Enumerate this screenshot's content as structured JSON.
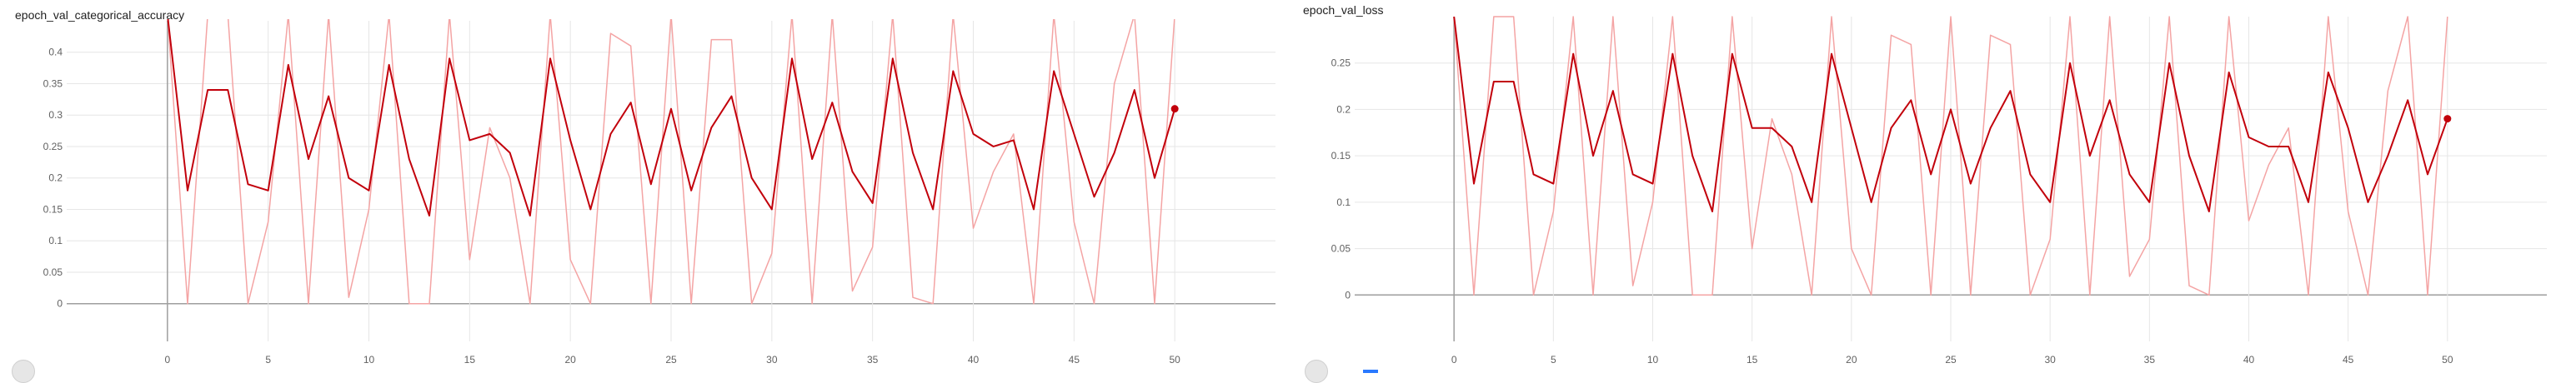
{
  "charts": [
    {
      "title": "epoch_val_categorical_accuracy"
    },
    {
      "title": "epoch_val_loss"
    }
  ],
  "chart_data": [
    {
      "type": "line",
      "title": "epoch_val_categorical_accuracy",
      "xlabel": "",
      "ylabel": "",
      "xlim": [
        -5,
        55
      ],
      "ylim": [
        -0.06,
        0.45
      ],
      "x_ticks": [
        0,
        5,
        10,
        15,
        20,
        25,
        30,
        35,
        40,
        45,
        50
      ],
      "y_ticks": [
        0,
        0.05,
        0.1,
        0.15,
        0.2,
        0.25,
        0.3,
        0.35,
        0.4
      ],
      "grid": true,
      "colors": {
        "smoothed": "#c2000b",
        "raw": "#f4a4a4"
      },
      "series": [
        {
          "x": [
            0,
            1,
            2,
            3,
            4,
            5,
            6,
            7,
            8,
            9,
            10,
            11,
            12,
            13,
            14,
            15,
            16,
            17,
            18,
            19,
            20,
            21,
            22,
            23,
            24,
            25,
            26,
            27,
            28,
            29,
            30,
            31,
            32,
            33,
            34,
            35,
            36,
            37,
            38,
            39,
            40,
            41,
            42,
            43,
            44,
            45,
            46,
            47,
            48,
            49,
            50
          ],
          "values": [
            0.46,
            0.18,
            0.34,
            0.34,
            0.19,
            0.18,
            0.38,
            0.23,
            0.33,
            0.2,
            0.18,
            0.38,
            0.23,
            0.14,
            0.39,
            0.26,
            0.27,
            0.24,
            0.14,
            0.39,
            0.26,
            0.15,
            0.27,
            0.32,
            0.19,
            0.31,
            0.18,
            0.28,
            0.33,
            0.2,
            0.15,
            0.39,
            0.23,
            0.32,
            0.21,
            0.16,
            0.39,
            0.24,
            0.15,
            0.37,
            0.27,
            0.25,
            0.26,
            0.15,
            0.37,
            0.27,
            0.17,
            0.24,
            0.34,
            0.2,
            0.31
          ]
        },
        {
          "x": [
            0,
            1,
            2,
            3,
            4,
            5,
            6,
            7,
            8,
            9,
            10,
            11,
            12,
            13,
            14,
            15,
            16,
            17,
            18,
            19,
            20,
            21,
            22,
            23,
            24,
            25,
            26,
            27,
            28,
            29,
            30,
            31,
            32,
            33,
            34,
            35,
            36,
            37,
            38,
            39,
            40,
            41,
            42,
            43,
            44,
            45,
            46,
            47,
            48,
            49,
            50
          ],
          "values": [
            0.46,
            0.0,
            0.46,
            0.46,
            0.0,
            0.13,
            0.46,
            0.0,
            0.46,
            0.01,
            0.15,
            0.46,
            0.0,
            0.0,
            0.46,
            0.07,
            0.28,
            0.2,
            0.0,
            0.46,
            0.07,
            0.0,
            0.43,
            0.41,
            0.0,
            0.46,
            0.0,
            0.42,
            0.42,
            0.0,
            0.08,
            0.46,
            0.0,
            0.46,
            0.02,
            0.09,
            0.46,
            0.01,
            0.0,
            0.46,
            0.12,
            0.21,
            0.27,
            0.0,
            0.46,
            0.13,
            0.0,
            0.35,
            0.46,
            0.0,
            0.46
          ]
        }
      ]
    },
    {
      "type": "line",
      "title": "epoch_val_loss",
      "xlabel": "",
      "ylabel": "",
      "xlim": [
        -5,
        55
      ],
      "ylim": [
        -0.05,
        0.3
      ],
      "x_ticks": [
        0,
        5,
        10,
        15,
        20,
        25,
        30,
        35,
        40,
        45,
        50
      ],
      "y_ticks": [
        0,
        0.05,
        0.1,
        0.15,
        0.2,
        0.25
      ],
      "grid": true,
      "colors": {
        "smoothed": "#c2000b",
        "raw": "#f4a4a4"
      },
      "series": [
        {
          "x": [
            0,
            1,
            2,
            3,
            4,
            5,
            6,
            7,
            8,
            9,
            10,
            11,
            12,
            13,
            14,
            15,
            16,
            17,
            18,
            19,
            20,
            21,
            22,
            23,
            24,
            25,
            26,
            27,
            28,
            29,
            30,
            31,
            32,
            33,
            34,
            35,
            36,
            37,
            38,
            39,
            40,
            41,
            42,
            43,
            44,
            45,
            46,
            47,
            48,
            49,
            50
          ],
          "values": [
            0.3,
            0.12,
            0.23,
            0.23,
            0.13,
            0.12,
            0.26,
            0.15,
            0.22,
            0.13,
            0.12,
            0.26,
            0.15,
            0.09,
            0.26,
            0.18,
            0.18,
            0.16,
            0.1,
            0.26,
            0.18,
            0.1,
            0.18,
            0.21,
            0.13,
            0.2,
            0.12,
            0.18,
            0.22,
            0.13,
            0.1,
            0.25,
            0.15,
            0.21,
            0.13,
            0.1,
            0.25,
            0.15,
            0.09,
            0.24,
            0.17,
            0.16,
            0.16,
            0.1,
            0.24,
            0.18,
            0.1,
            0.15,
            0.21,
            0.13,
            0.19
          ]
        },
        {
          "x": [
            0,
            1,
            2,
            3,
            4,
            5,
            6,
            7,
            8,
            9,
            10,
            11,
            12,
            13,
            14,
            15,
            16,
            17,
            18,
            19,
            20,
            21,
            22,
            23,
            24,
            25,
            26,
            27,
            28,
            29,
            30,
            31,
            32,
            33,
            34,
            35,
            36,
            37,
            38,
            39,
            40,
            41,
            42,
            43,
            44,
            45,
            46,
            47,
            48,
            49,
            50
          ],
          "values": [
            0.3,
            0.0,
            0.3,
            0.3,
            0.0,
            0.09,
            0.3,
            0.0,
            0.3,
            0.01,
            0.1,
            0.3,
            0.0,
            0.0,
            0.3,
            0.05,
            0.19,
            0.13,
            0.0,
            0.3,
            0.05,
            0.0,
            0.28,
            0.27,
            0.0,
            0.3,
            0.0,
            0.28,
            0.27,
            0.0,
            0.06,
            0.3,
            0.0,
            0.3,
            0.02,
            0.06,
            0.3,
            0.01,
            0.0,
            0.3,
            0.08,
            0.14,
            0.18,
            0.0,
            0.3,
            0.09,
            0.0,
            0.22,
            0.3,
            0.0,
            0.3
          ]
        }
      ]
    }
  ]
}
